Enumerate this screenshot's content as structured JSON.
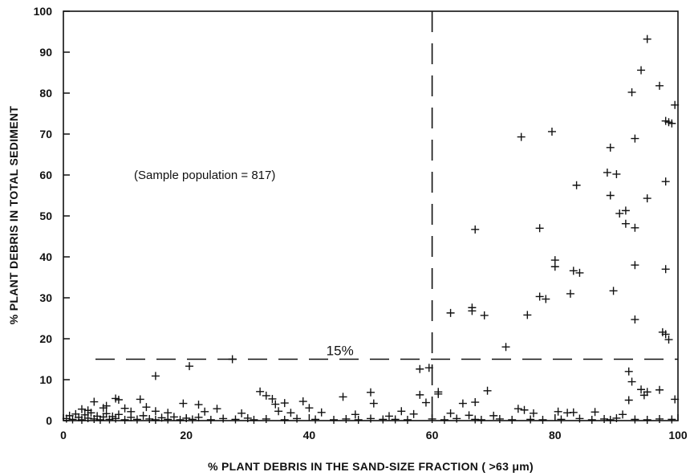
{
  "chart_data": {
    "type": "scatter",
    "title": "",
    "xlabel": "% PLANT DEBRIS IN THE SAND-SIZE FRACTION ( >63 μm)",
    "ylabel": "% PLANT DEBRIS IN TOTAL SEDIMENT",
    "xlim": [
      0,
      100
    ],
    "ylim": [
      0,
      100
    ],
    "x_ticks": [
      "0",
      "20",
      "40",
      "60",
      "80",
      "100"
    ],
    "y_ticks": [
      "0",
      "10",
      "20",
      "30",
      "40",
      "50",
      "60",
      "70",
      "80",
      "90",
      "100"
    ],
    "grid": false,
    "marker": "+",
    "reference_lines": [
      {
        "orientation": "vertical",
        "x": 60,
        "style": "dashed"
      },
      {
        "orientation": "horizontal",
        "y": 15,
        "style": "dashed",
        "label": "15%"
      }
    ],
    "annotations": [
      {
        "text": "(Sample population = 817)",
        "x": 23,
        "y": 60
      }
    ],
    "points": [
      [
        95,
        93.2
      ],
      [
        94,
        85.6
      ],
      [
        97,
        81.8
      ],
      [
        92.5,
        80.2
      ],
      [
        99.5,
        77.1
      ],
      [
        98,
        73.2
      ],
      [
        99,
        72.6
      ],
      [
        98.5,
        72.9
      ],
      [
        74.5,
        69.3
      ],
      [
        79.5,
        70.6
      ],
      [
        93,
        68.9
      ],
      [
        89,
        66.7
      ],
      [
        98,
        58.4
      ],
      [
        88.5,
        60.6
      ],
      [
        90,
        60.2
      ],
      [
        83.5,
        57.5
      ],
      [
        89,
        55
      ],
      [
        95,
        54.3
      ],
      [
        91.5,
        51.3
      ],
      [
        90.5,
        50.6
      ],
      [
        91.5,
        48.1
      ],
      [
        77.5,
        47
      ],
      [
        67,
        46.7
      ],
      [
        93,
        47.1
      ],
      [
        80,
        39.2
      ],
      [
        80,
        37.6
      ],
      [
        93,
        38
      ],
      [
        83,
        36.6
      ],
      [
        84,
        36.1
      ],
      [
        98,
        37
      ],
      [
        89.5,
        31.7
      ],
      [
        78.5,
        29.7
      ],
      [
        77.5,
        30.3
      ],
      [
        82.5,
        31
      ],
      [
        63,
        26.3
      ],
      [
        66.5,
        27.6
      ],
      [
        66.5,
        26.8
      ],
      [
        68.5,
        25.7
      ],
      [
        75.5,
        25.8
      ],
      [
        93,
        24.7
      ],
      [
        97.5,
        21.6
      ],
      [
        98,
        21.1
      ],
      [
        98.5,
        19.8
      ],
      [
        72,
        18
      ],
      [
        27.5,
        15
      ],
      [
        15,
        10.9
      ],
      [
        20.5,
        13.3
      ],
      [
        58,
        12.6
      ],
      [
        59.5,
        12.9
      ],
      [
        92,
        12
      ],
      [
        92.5,
        9.5
      ],
      [
        94,
        7.6
      ],
      [
        97,
        7.5
      ],
      [
        61,
        7
      ],
      [
        61,
        6.5
      ],
      [
        69,
        7.3
      ],
      [
        95,
        7
      ],
      [
        94.5,
        6.2
      ],
      [
        65,
        4.2
      ],
      [
        67,
        4.5
      ],
      [
        92,
        5
      ],
      [
        99.5,
        5.2
      ],
      [
        32,
        7.1
      ],
      [
        33,
        6.1
      ],
      [
        34,
        5.3
      ],
      [
        34.5,
        4
      ],
      [
        36,
        4.3
      ],
      [
        39,
        4.7
      ],
      [
        40,
        3.1
      ],
      [
        45.5,
        5.8
      ],
      [
        50,
        6.9
      ],
      [
        50.5,
        4.2
      ],
      [
        58,
        6.3
      ],
      [
        59,
        4.4
      ],
      [
        5,
        4.6
      ],
      [
        8.5,
        5.4
      ],
      [
        9,
        5.1
      ],
      [
        12.5,
        5.2
      ],
      [
        7,
        3.6
      ],
      [
        10,
        3
      ],
      [
        19.5,
        4.2
      ],
      [
        22,
        3.9
      ],
      [
        25,
        2.9
      ],
      [
        3,
        2.8
      ],
      [
        4,
        2.5
      ],
      [
        6.5,
        3.1
      ],
      [
        11,
        2.2
      ],
      [
        13.5,
        3.3
      ],
      [
        15,
        2.3
      ],
      [
        17,
        1.9
      ],
      [
        23,
        2.2
      ],
      [
        29,
        1.8
      ],
      [
        35,
        2.3
      ],
      [
        37,
        1.9
      ],
      [
        42,
        2
      ],
      [
        47.5,
        1.5
      ],
      [
        55,
        2.3
      ],
      [
        57,
        1.6
      ],
      [
        63,
        1.8
      ],
      [
        66,
        1.3
      ],
      [
        70,
        1.2
      ],
      [
        74,
        2.9
      ],
      [
        75,
        2.6
      ],
      [
        76.5,
        1.8
      ],
      [
        80.5,
        2.2
      ],
      [
        82,
        1.9
      ],
      [
        83,
        2
      ],
      [
        86.5,
        2.1
      ],
      [
        91,
        1.5
      ],
      [
        0.5,
        0.5
      ],
      [
        1,
        1.2
      ],
      [
        1.5,
        0.3
      ],
      [
        2,
        1.6
      ],
      [
        2.5,
        0.8
      ],
      [
        3,
        0.2
      ],
      [
        3.5,
        1.4
      ],
      [
        4,
        0.6
      ],
      [
        4.5,
        1.9
      ],
      [
        5,
        0.4
      ],
      [
        5.5,
        1.1
      ],
      [
        6,
        0.2
      ],
      [
        6.5,
        0.9
      ],
      [
        7,
        1.7
      ],
      [
        7.5,
        0.3
      ],
      [
        8,
        1
      ],
      [
        8.5,
        0.5
      ],
      [
        9,
        1.5
      ],
      [
        10,
        0.2
      ],
      [
        11,
        0.8
      ],
      [
        12,
        0.3
      ],
      [
        13,
        1.2
      ],
      [
        14,
        0.4
      ],
      [
        15,
        0.2
      ],
      [
        16,
        0.7
      ],
      [
        17,
        0.3
      ],
      [
        18,
        0.9
      ],
      [
        19,
        0.2
      ],
      [
        20,
        0.6
      ],
      [
        21,
        0.3
      ],
      [
        22,
        0.8
      ],
      [
        24,
        0.2
      ],
      [
        26,
        0.5
      ],
      [
        28,
        0.3
      ],
      [
        30,
        0.6
      ],
      [
        31,
        0.2
      ],
      [
        33,
        0.4
      ],
      [
        36,
        0.2
      ],
      [
        38,
        0.5
      ],
      [
        41,
        0.3
      ],
      [
        44,
        0.2
      ],
      [
        46,
        0.4
      ],
      [
        48,
        0.2
      ],
      [
        50,
        0.5
      ],
      [
        52,
        0.3
      ],
      [
        53,
        1.1
      ],
      [
        54,
        0.3
      ],
      [
        56,
        0.2
      ],
      [
        60,
        0.4
      ],
      [
        62,
        0.2
      ],
      [
        64,
        0.5
      ],
      [
        67,
        0.3
      ],
      [
        68,
        0.2
      ],
      [
        71,
        0.4
      ],
      [
        73,
        0.2
      ],
      [
        76,
        0.3
      ],
      [
        78,
        0.2
      ],
      [
        81,
        0.3
      ],
      [
        84,
        0.5
      ],
      [
        86,
        0.2
      ],
      [
        88,
        0.4
      ],
      [
        89,
        0.2
      ],
      [
        90,
        0.6
      ],
      [
        93,
        0.3
      ],
      [
        95,
        0.2
      ],
      [
        97,
        0.4
      ],
      [
        99,
        0.3
      ]
    ]
  }
}
